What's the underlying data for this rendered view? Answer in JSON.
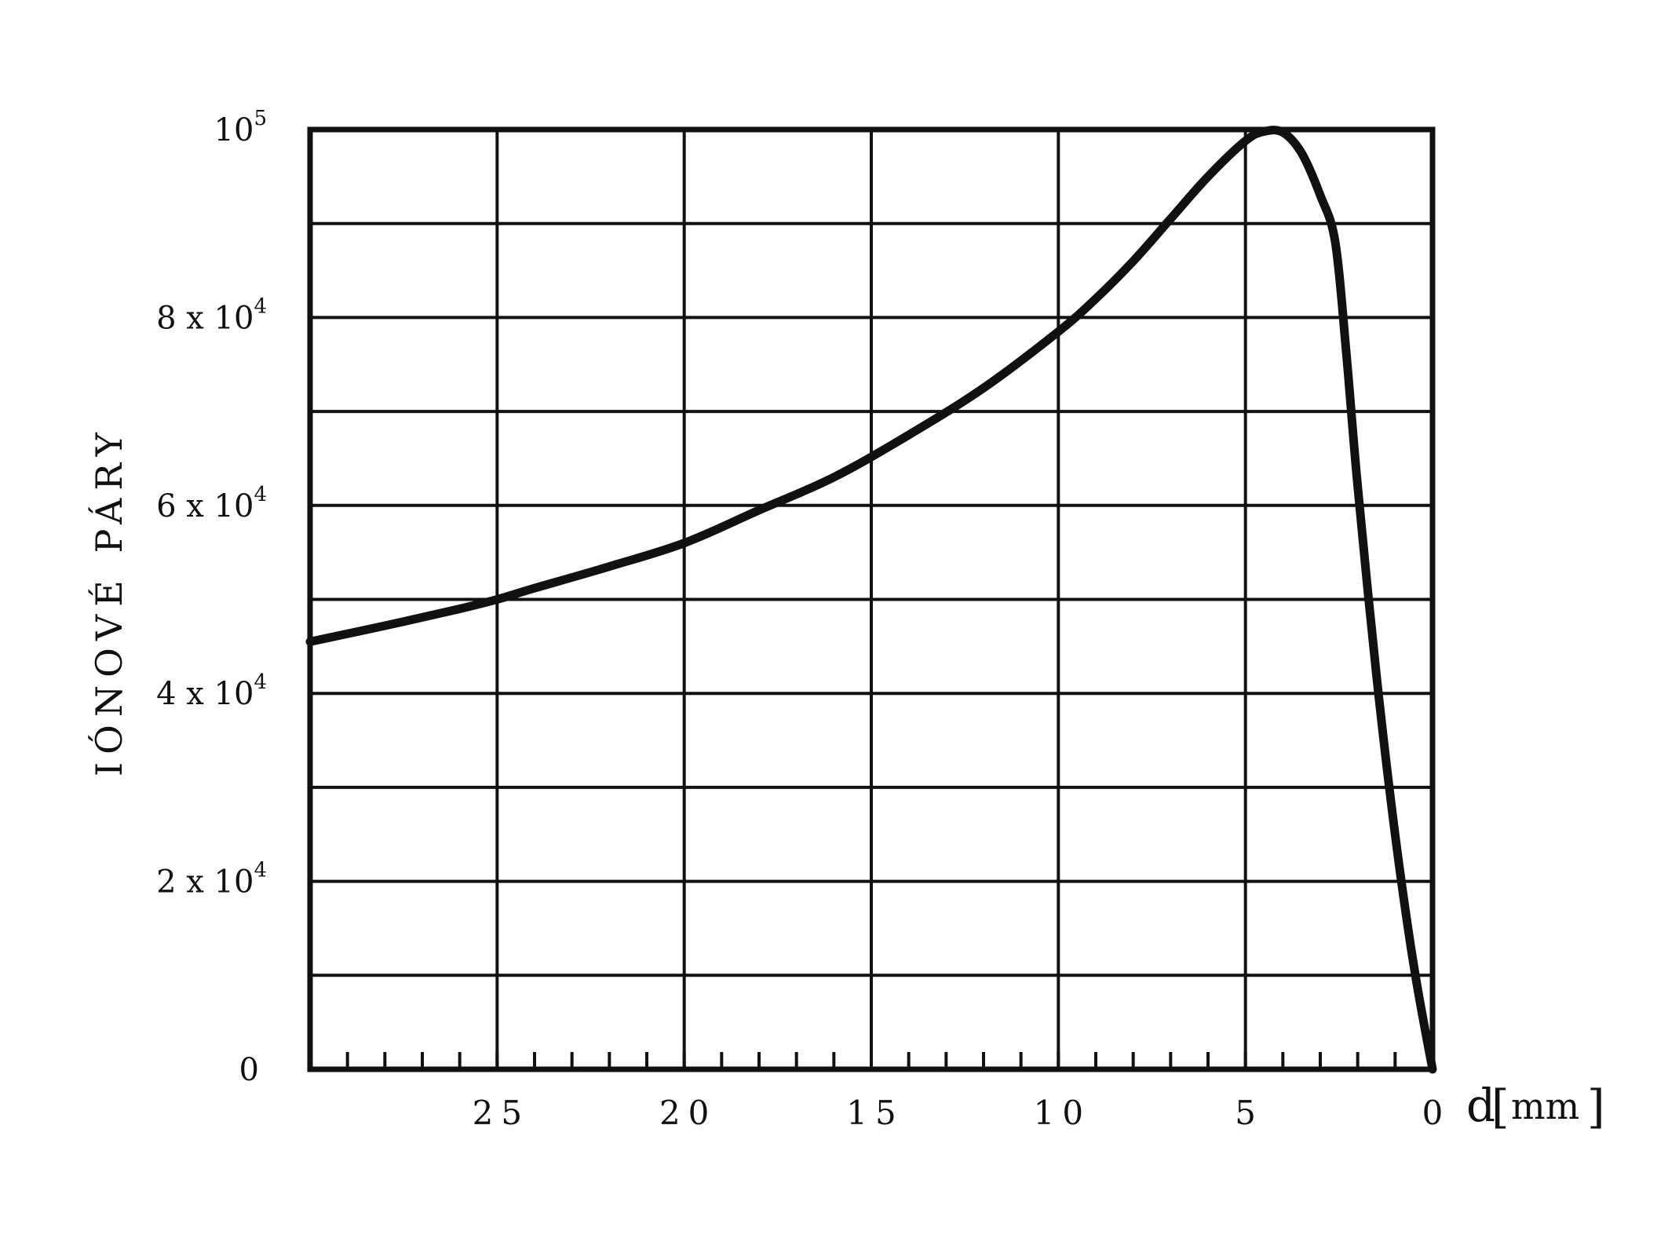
{
  "chart_data": {
    "type": "line",
    "title": "",
    "xlabel": "d",
    "xunit": "mm",
    "ylabel": "IÓNOVÉ PÁRY",
    "xlim": [
      30,
      0
    ],
    "ylim": [
      0,
      100000
    ],
    "x_reversed": true,
    "grid": true,
    "x_ticks": [
      {
        "value": 25,
        "label": "25"
      },
      {
        "value": 20,
        "label": "20"
      },
      {
        "value": 15,
        "label": "15"
      },
      {
        "value": 10,
        "label": "10"
      },
      {
        "value": 5,
        "label": "5"
      },
      {
        "value": 0,
        "label": "0"
      }
    ],
    "y_ticks": [
      {
        "value": 0,
        "mantissa": "0",
        "exponent": ""
      },
      {
        "value": 20000,
        "mantissa": "2 x 10",
        "exponent": "4"
      },
      {
        "value": 40000,
        "mantissa": "4 x 10",
        "exponent": "4"
      },
      {
        "value": 60000,
        "mantissa": "6 x 10",
        "exponent": "4"
      },
      {
        "value": 80000,
        "mantissa": "8 x 10",
        "exponent": "4"
      },
      {
        "value": 100000,
        "mantissa": "10",
        "exponent": "5"
      }
    ],
    "series": [
      {
        "x": [
          30,
          28,
          26,
          25,
          24,
          22,
          20,
          18,
          16,
          14,
          12,
          10,
          9,
          8,
          7,
          6,
          5,
          4.5,
          4,
          3.5,
          3,
          2.6,
          2.3,
          2.0,
          1.5,
          1.0,
          0.5,
          0
        ],
        "y": [
          45500,
          47200,
          49000,
          50000,
          51200,
          53500,
          56000,
          59500,
          63000,
          67500,
          72500,
          78500,
          82000,
          86000,
          90500,
          95000,
          98800,
          99800,
          99700,
          97500,
          93000,
          88000,
          76000,
          62000,
          42000,
          25000,
          11000,
          0
        ]
      }
    ]
  }
}
